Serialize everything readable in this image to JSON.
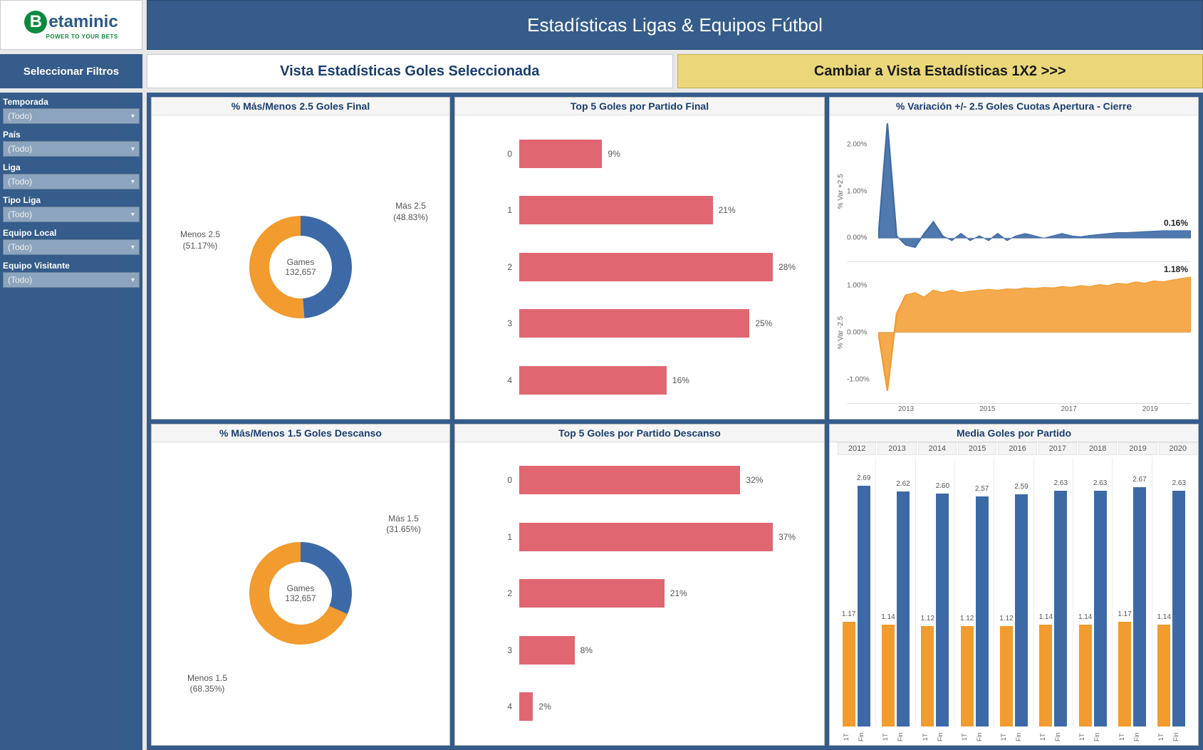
{
  "colors": {
    "header_bg": "#355c8a",
    "accent_yellow": "#ead77a",
    "blue": "#3d6aa6",
    "orange": "#f29b2e",
    "red": "#e06772",
    "axis": "#666666",
    "card_bg": "#ffffff"
  },
  "logo": {
    "brand": "Betaminic",
    "b": "B",
    "tagline": "POWER TO YOUR BETS"
  },
  "header": {
    "title": "Estadísticas Ligas & Equipos Fútbol"
  },
  "subheader": {
    "filters_label": "Seleccionar Filtros",
    "view_selected": "Vista Estadísticas Goles Seleccionada",
    "view_switch": "Cambiar a Vista Estadísticas 1X2 >>>"
  },
  "filters": [
    {
      "label": "Temporada",
      "value": "(Todo)"
    },
    {
      "label": "País",
      "value": "(Todo)"
    },
    {
      "label": "Liga",
      "value": "(Todo)"
    },
    {
      "label": "Tipo Liga",
      "value": "(Todo)"
    },
    {
      "label": "Equipo Local",
      "value": "(Todo)"
    },
    {
      "label": "Equipo Visitante",
      "value": "(Todo)"
    }
  ],
  "donut_final": {
    "title": "% Más/Menos 2.5  Goles Final",
    "center_top": "Games",
    "center_val": "132,657",
    "segments": [
      {
        "label_line1": "Más 2.5",
        "label_line2": "(48.83%)",
        "pct": 48.83,
        "color": "#3d6aa6"
      },
      {
        "label_line1": "Menos 2.5",
        "label_line2": "(51.17%)",
        "pct": 51.17,
        "color": "#f29b2e"
      }
    ]
  },
  "donut_ht": {
    "title": "% Más/Menos 1.5 Goles Descanso",
    "center_top": "Games",
    "center_val": "132,657",
    "segments": [
      {
        "label_line1": "Más 1.5",
        "label_line2": "(31.65%)",
        "pct": 31.65,
        "color": "#3d6aa6"
      },
      {
        "label_line1": "Menos 1.5",
        "label_line2": "(68.35%)",
        "pct": 68.35,
        "color": "#f29b2e"
      }
    ]
  },
  "hbar_final": {
    "title": "Top 5 Goles por Partido Final",
    "bar_color": "#e06772",
    "max_pct": 30,
    "rows": [
      {
        "cat": "0",
        "pct": 9,
        "label": "9%"
      },
      {
        "cat": "1",
        "pct": 21,
        "label": "21%"
      },
      {
        "cat": "2",
        "pct": 28,
        "label": "28%"
      },
      {
        "cat": "3",
        "pct": 25,
        "label": "25%"
      },
      {
        "cat": "4",
        "pct": 16,
        "label": "16%"
      }
    ]
  },
  "hbar_ht": {
    "title": "Top 5 Goles por Partido Descanso",
    "bar_color": "#e06772",
    "max_pct": 40,
    "rows": [
      {
        "cat": "0",
        "pct": 32,
        "label": "32%"
      },
      {
        "cat": "1",
        "pct": 37,
        "label": "37%"
      },
      {
        "cat": "2",
        "pct": 21,
        "label": "21%"
      },
      {
        "cat": "3",
        "pct": 8,
        "label": "8%"
      },
      {
        "cat": "4",
        "pct": 2,
        "label": "2%"
      }
    ]
  },
  "variation": {
    "title": "% Variación +/- 2.5 Goles Cuotas Apertura - Cierre",
    "over": {
      "ylabel": "% Var +2.5",
      "yticks": [
        "2.00%",
        "1.00%",
        "0.00%"
      ],
      "end_label": "0.16%",
      "color": "#3d6aa6",
      "series": [
        0.0,
        2.45,
        0.05,
        -0.15,
        -0.2,
        0.1,
        0.35,
        0.05,
        -0.05,
        0.1,
        -0.05,
        0.05,
        -0.05,
        0.1,
        -0.05,
        0.05,
        0.1,
        0.05,
        0.0,
        0.05,
        0.1,
        0.05,
        0.03,
        0.06,
        0.08,
        0.1,
        0.12,
        0.12,
        0.13,
        0.14,
        0.15,
        0.16,
        0.16,
        0.16,
        0.16
      ]
    },
    "under": {
      "ylabel": "% Var -2.5",
      "yticks": [
        "1.00%",
        "0.00%",
        "-1.00%"
      ],
      "end_label": "1.18%",
      "color": "#f29b2e",
      "series": [
        0.0,
        -1.25,
        0.4,
        0.8,
        0.85,
        0.75,
        0.9,
        0.85,
        0.9,
        0.85,
        0.88,
        0.9,
        0.92,
        0.9,
        0.93,
        0.92,
        0.95,
        0.94,
        0.96,
        0.95,
        0.98,
        0.96,
        1.0,
        0.98,
        1.02,
        1.0,
        1.05,
        1.03,
        1.08,
        1.05,
        1.1,
        1.08,
        1.12,
        1.15,
        1.18
      ]
    },
    "xticks": [
      "2013",
      "2015",
      "2017",
      "2019"
    ]
  },
  "grouped": {
    "title": "Media Goles por Partido",
    "years": [
      "2012",
      "2013",
      "2014",
      "2015",
      "2016",
      "2017",
      "2018",
      "2019",
      "2020"
    ],
    "series_1t": {
      "label": "1T",
      "color": "#f29b2e",
      "values": [
        1.17,
        1.14,
        1.12,
        1.12,
        1.12,
        1.14,
        1.14,
        1.17,
        1.14
      ]
    },
    "series_fin": {
      "label": "Fin",
      "color": "#3d6aa6",
      "values": [
        2.69,
        2.62,
        2.6,
        2.57,
        2.59,
        2.63,
        2.63,
        2.67,
        2.63
      ]
    },
    "ymax": 3.0
  }
}
